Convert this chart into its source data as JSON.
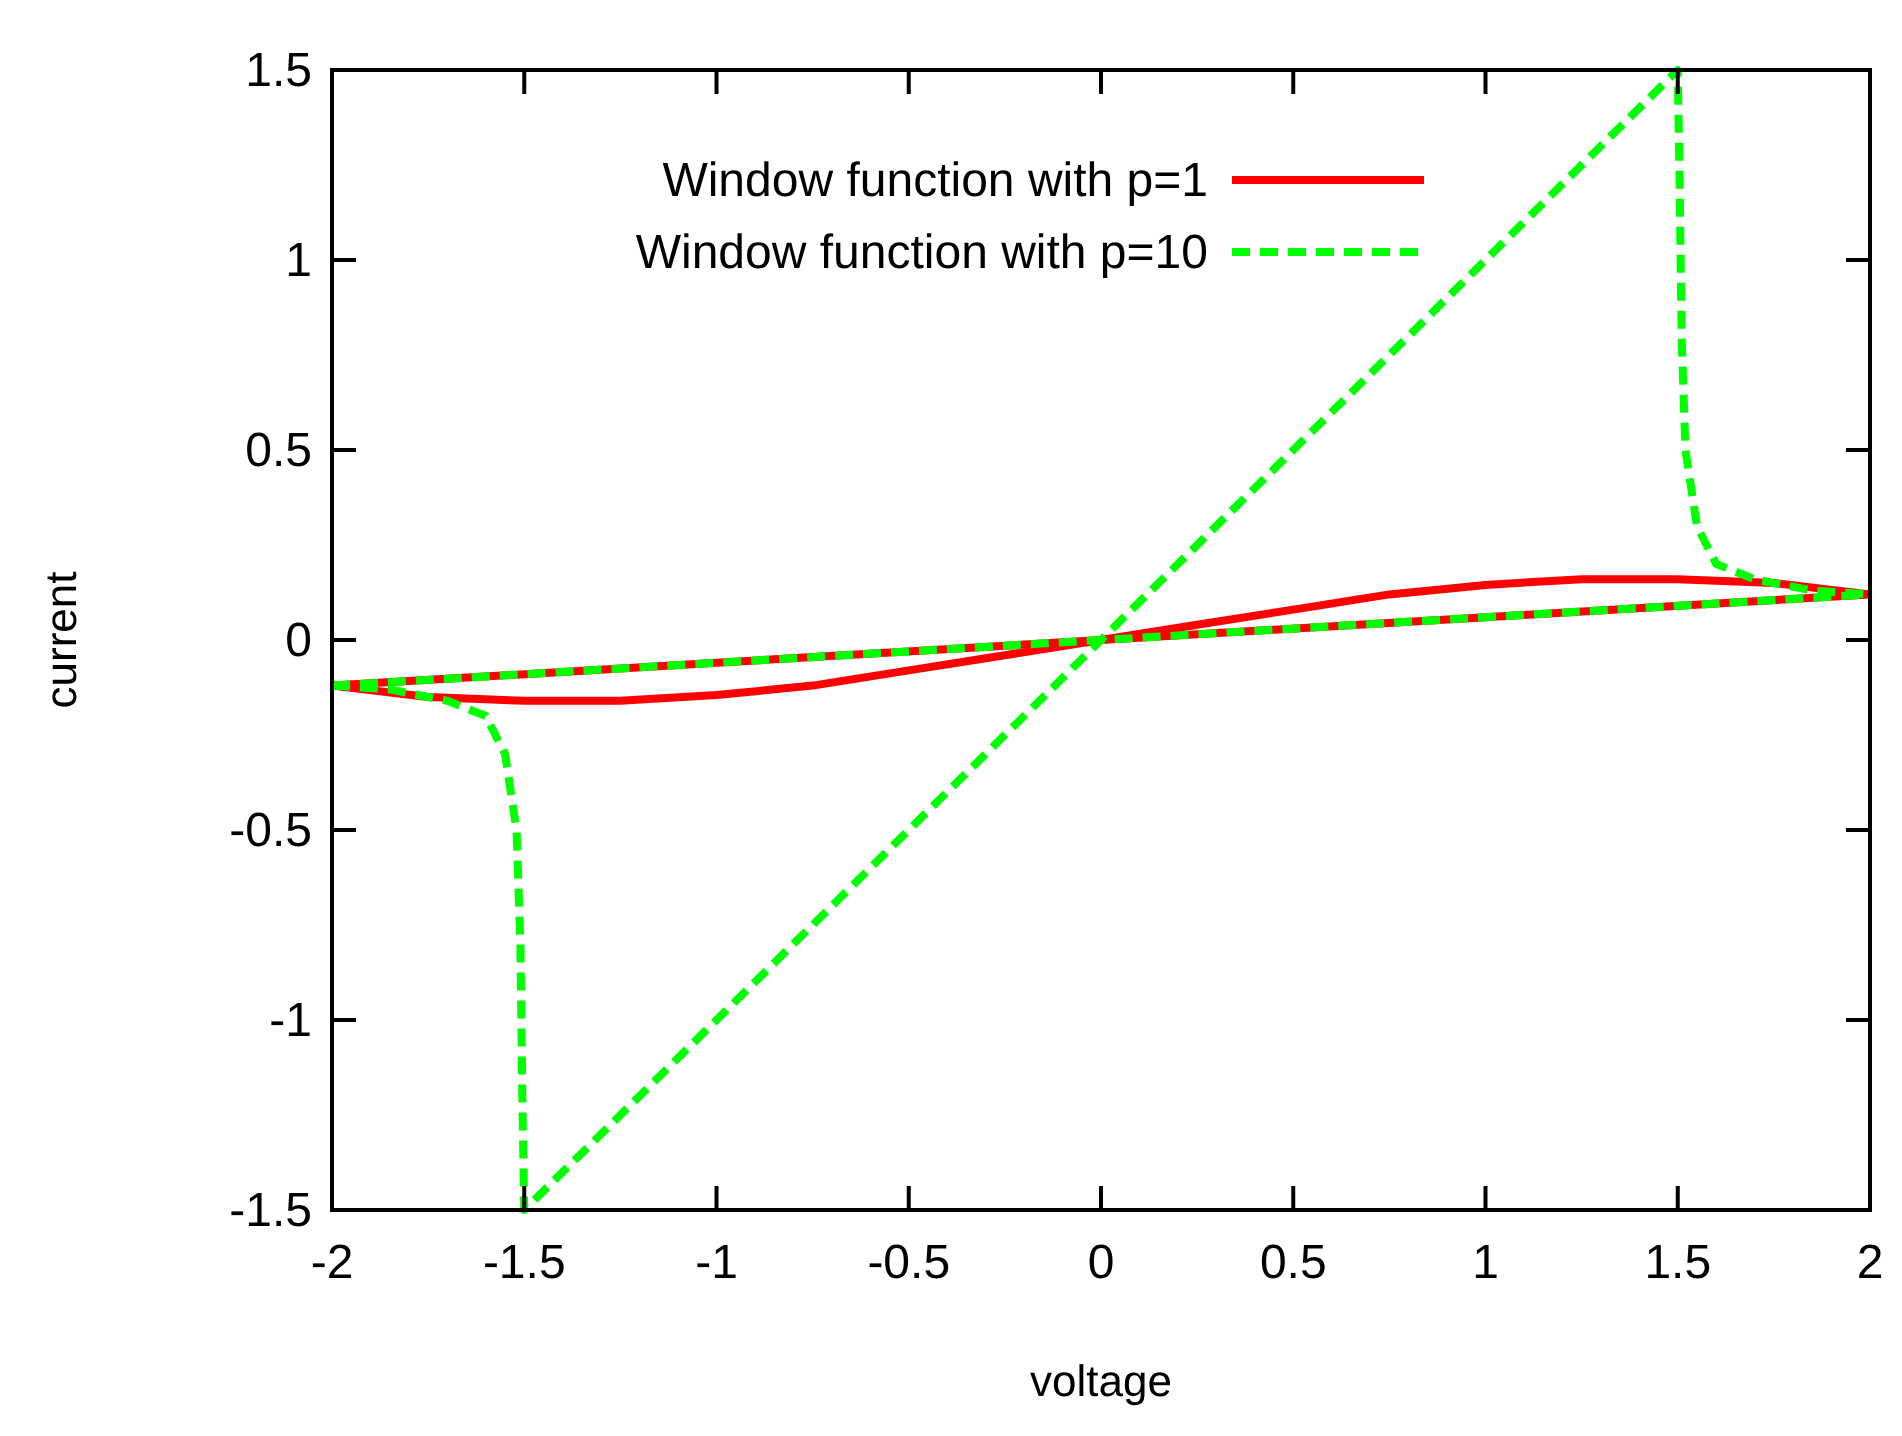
{
  "chart_data": {
    "type": "line",
    "xlabel": "voltage",
    "ylabel": "current",
    "xlim": [
      -2,
      2
    ],
    "ylim": [
      -1.5,
      1.5
    ],
    "xticks": [
      -2,
      -1.5,
      -1,
      -0.5,
      0,
      0.5,
      1,
      1.5,
      2
    ],
    "yticks": [
      -1.5,
      -1,
      -0.5,
      0,
      0.5,
      1,
      1.5
    ],
    "grid": false,
    "legend": "top left",
    "marker": "none",
    "series": [
      {
        "name": "Window function with p=1",
        "color": "#ff0000",
        "line_style": "solid",
        "x": [
          -2,
          -1.75,
          -1.5,
          -1.25,
          -1,
          -0.75,
          -0.5,
          -0.25,
          0,
          0.25,
          0.5,
          0.75,
          1,
          1.25,
          1.5,
          1.75,
          2
        ],
        "values": [
          -0.12,
          -0.15,
          -0.16,
          -0.16,
          -0.145,
          -0.12,
          -0.08,
          -0.04,
          0,
          0.04,
          0.08,
          0.12,
          0.145,
          0.16,
          0.16,
          0.15,
          0.12
        ]
      },
      {
        "color": "#ff0000",
        "line_style": "solid",
        "x": [
          -2,
          -1,
          0,
          1,
          2
        ],
        "values": [
          -0.12,
          -0.06,
          0,
          0.06,
          0.12
        ]
      },
      {
        "name": "Window function with p=10",
        "color": "#00ff00",
        "line_style": "dashed",
        "x": [
          -2,
          -1.85,
          -1.7,
          -1.6,
          -1.55,
          -1.52,
          -1.51,
          -1.505,
          -1.5,
          0,
          1.5,
          1.505,
          1.51,
          1.52,
          1.55,
          1.6,
          1.7,
          1.85,
          2
        ],
        "values": [
          -0.12,
          -0.13,
          -0.16,
          -0.2,
          -0.3,
          -0.5,
          -0.8,
          -1.2,
          -1.5,
          0,
          1.5,
          1.2,
          0.8,
          0.5,
          0.3,
          0.2,
          0.16,
          0.13,
          0.12
        ]
      },
      {
        "color": "#00ff00",
        "line_style": "dashed",
        "x": [
          -2,
          -1,
          0,
          1,
          2
        ],
        "values": [
          -0.12,
          -0.06,
          0,
          0.06,
          0.12
        ]
      }
    ]
  }
}
